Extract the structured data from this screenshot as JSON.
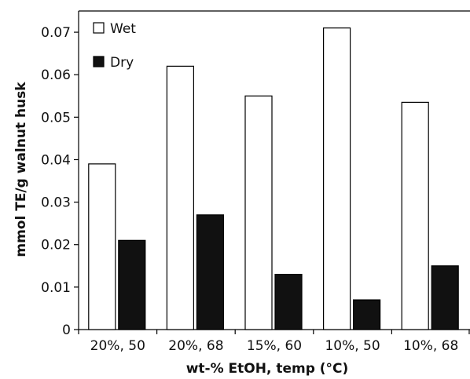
{
  "chart_data": {
    "type": "bar",
    "title": "",
    "xlabel": "wt-% EtOH, temp (°C)",
    "ylabel": "mmol TE/g walnut husk",
    "categories": [
      "20%, 50",
      "20%, 68",
      "15%, 60",
      "10%, 50",
      "10%, 68"
    ],
    "series": [
      {
        "name": "Wet",
        "values": [
          0.039,
          0.062,
          0.055,
          0.071,
          0.0535
        ],
        "color": "#ffffff",
        "stroke": "#000000"
      },
      {
        "name": "Dry",
        "values": [
          0.021,
          0.027,
          0.013,
          0.007,
          0.015
        ],
        "color": "#111111",
        "stroke": "#000000"
      }
    ],
    "ylim": [
      0,
      0.075
    ],
    "yticks": [
      "0",
      "0.01",
      "0.02",
      "0.03",
      "0.04",
      "0.05",
      "0.06",
      "0.07"
    ],
    "ytick_values": [
      0,
      0.01,
      0.02,
      0.03,
      0.04,
      0.05,
      0.06,
      0.07
    ],
    "grid": false,
    "legend_position": "top-left"
  }
}
